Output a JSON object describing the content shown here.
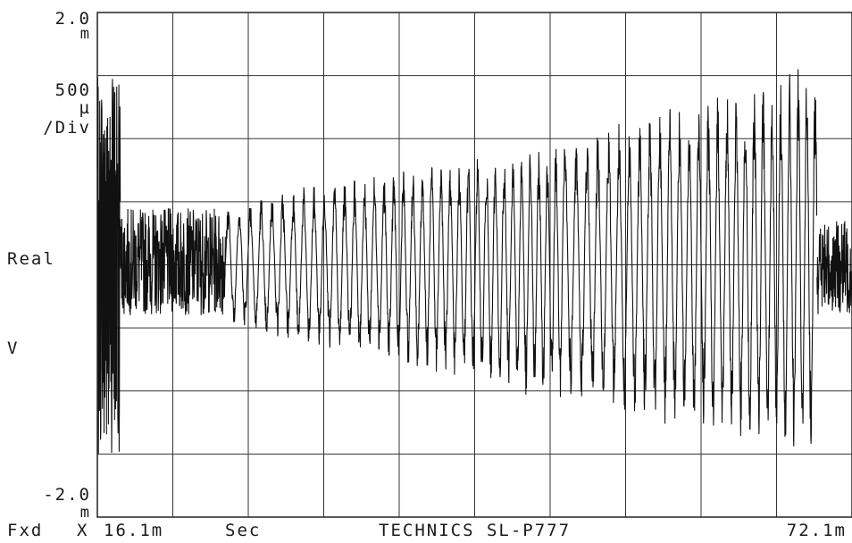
{
  "chart_data": {
    "type": "line",
    "title": "",
    "instrument": "TECHNICS SL-P777",
    "y_axis": {
      "top_value": "2.0",
      "top_unit": "m",
      "scale_value": "500",
      "scale_unit": "µ",
      "scale_suffix": "/Div",
      "bottom_value": "-2.0",
      "bottom_unit": "m",
      "quantity": "Real",
      "unit": "V",
      "ylim": [
        -0.002,
        0.002
      ],
      "per_division": 0.0005
    },
    "x_axis": {
      "mode": "Fxd",
      "axis_letter": "X",
      "start": "16.1m",
      "unit": "Sec",
      "end": "72.1m",
      "xlim": [
        0.0161,
        0.0721
      ]
    },
    "grid": true,
    "divisions": {
      "x": 10,
      "y": 8
    },
    "series": [
      {
        "segments": [
          {
            "x": [
              0.0161,
              0.0178
            ],
            "ymax": 0.0015,
            "ymin": -0.0015,
            "style": "burst"
          },
          {
            "x": [
              0.0178,
              0.0256
            ],
            "ymax": 0.00045,
            "ymin": -0.0004,
            "style": "noise"
          },
          {
            "x": [
              0.0256,
              0.0506
            ],
            "ymax_start": 0.0005,
            "ymax_end": 0.001,
            "ymin_start": -0.0005,
            "ymin_end": -0.0011,
            "style": "swept_sine"
          },
          {
            "x": [
              0.0506,
              0.0695
            ],
            "ymax_start": 0.001,
            "ymax_end": 0.0016,
            "ymin_start": -0.0011,
            "ymin_end": -0.0015,
            "style": "swept_sine"
          },
          {
            "x": [
              0.0695,
              0.0721
            ],
            "ymax": 0.00035,
            "ymin": -0.0004,
            "style": "noise"
          }
        ]
      }
    ]
  }
}
